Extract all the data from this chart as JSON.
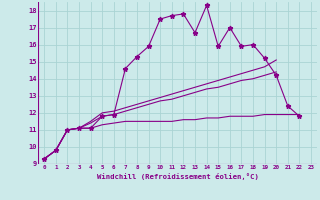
{
  "xlabel": "Windchill (Refroidissement éolien,°C)",
  "bg_color": "#cceaea",
  "grid_color": "#aad4d4",
  "line_color": "#880088",
  "xlim": [
    -0.5,
    23.5
  ],
  "ylim": [
    9,
    18.5
  ],
  "yticks": [
    9,
    10,
    11,
    12,
    13,
    14,
    15,
    16,
    17,
    18
  ],
  "xticks": [
    0,
    1,
    2,
    3,
    4,
    5,
    6,
    7,
    8,
    9,
    10,
    11,
    12,
    13,
    14,
    15,
    16,
    17,
    18,
    19,
    20,
    21,
    22,
    23
  ],
  "series1_x": [
    0,
    1,
    2,
    3,
    4,
    5,
    6,
    7,
    8,
    9,
    10,
    11,
    12,
    13,
    14,
    15,
    16,
    17,
    18,
    19,
    20,
    21,
    22
  ],
  "series1_y": [
    9.3,
    9.8,
    11.0,
    11.1,
    11.1,
    11.8,
    11.9,
    14.6,
    15.3,
    15.9,
    17.5,
    17.7,
    17.8,
    16.7,
    18.3,
    15.9,
    17.0,
    15.9,
    16.0,
    15.2,
    14.2,
    12.4,
    11.8
  ],
  "series2_x": [
    0,
    1,
    2,
    3,
    4,
    5,
    6,
    7,
    8,
    9,
    10,
    11,
    12,
    13,
    14,
    15,
    16,
    17,
    18,
    19,
    20
  ],
  "series2_y": [
    9.3,
    9.8,
    11.0,
    11.1,
    11.5,
    12.0,
    12.1,
    12.3,
    12.5,
    12.7,
    12.9,
    13.1,
    13.3,
    13.5,
    13.7,
    13.9,
    14.1,
    14.3,
    14.5,
    14.7,
    15.1
  ],
  "series3_x": [
    0,
    1,
    2,
    3,
    4,
    5,
    6,
    7,
    8,
    9,
    10,
    11,
    12,
    13,
    14,
    15,
    16,
    17,
    18,
    19,
    20
  ],
  "series3_y": [
    9.3,
    9.8,
    11.0,
    11.1,
    11.4,
    11.8,
    11.9,
    12.1,
    12.3,
    12.5,
    12.7,
    12.8,
    13.0,
    13.2,
    13.4,
    13.5,
    13.7,
    13.9,
    14.0,
    14.2,
    14.4
  ],
  "series4_x": [
    0,
    1,
    2,
    3,
    4,
    5,
    6,
    7,
    8,
    9,
    10,
    11,
    12,
    13,
    14,
    15,
    16,
    17,
    18,
    19,
    20,
    21,
    22
  ],
  "series4_y": [
    9.3,
    9.8,
    11.0,
    11.1,
    11.1,
    11.3,
    11.4,
    11.5,
    11.5,
    11.5,
    11.5,
    11.5,
    11.6,
    11.6,
    11.7,
    11.7,
    11.8,
    11.8,
    11.8,
    11.9,
    11.9,
    11.9,
    11.9
  ]
}
